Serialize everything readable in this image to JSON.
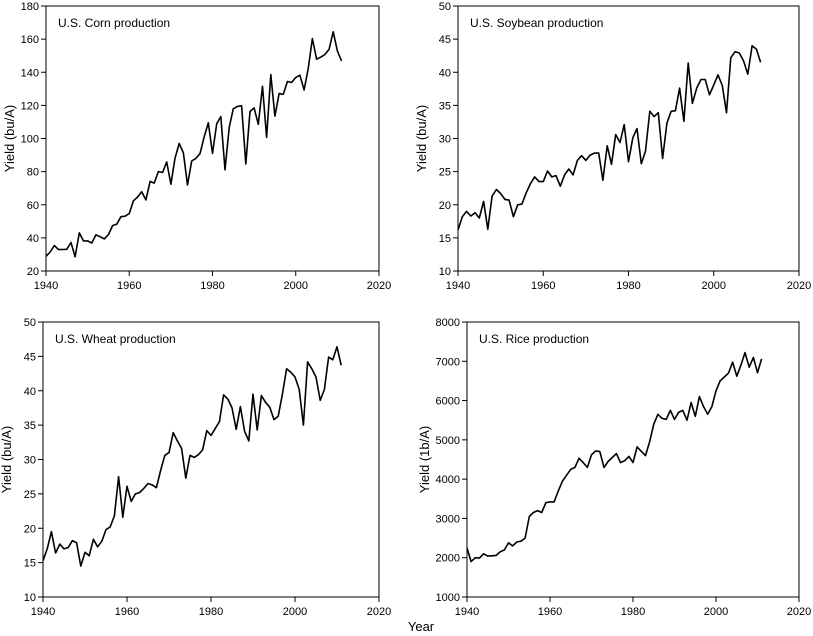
{
  "chart_data": [
    {
      "type": "line",
      "title": "U.S. Corn production",
      "xlabel": "",
      "ylabel": "Yield (bu/A)",
      "xlim": [
        1940,
        2020
      ],
      "ylim": [
        20,
        180
      ],
      "xticks": [
        1940,
        1960,
        1980,
        2000,
        2020
      ],
      "yticks": [
        20,
        40,
        60,
        80,
        100,
        120,
        140,
        160,
        180
      ],
      "grid": false,
      "color": "#000000",
      "x": [
        1940,
        1941,
        1942,
        1943,
        1944,
        1945,
        1946,
        1947,
        1948,
        1949,
        1950,
        1951,
        1952,
        1953,
        1954,
        1955,
        1956,
        1957,
        1958,
        1959,
        1960,
        1961,
        1962,
        1963,
        1964,
        1965,
        1966,
        1967,
        1968,
        1969,
        1970,
        1971,
        1972,
        1973,
        1974,
        1975,
        1976,
        1977,
        1978,
        1979,
        1980,
        1981,
        1982,
        1983,
        1984,
        1985,
        1986,
        1987,
        1988,
        1989,
        1990,
        1991,
        1992,
        1993,
        1994,
        1995,
        1996,
        1997,
        1998,
        1999,
        2000,
        2001,
        2002,
        2003,
        2004,
        2005,
        2006,
        2007,
        2008,
        2009,
        2010,
        2011
      ],
      "y": [
        28.9,
        31.5,
        35.4,
        32.9,
        33.0,
        33.1,
        37.2,
        28.6,
        43.0,
        38.2,
        38.2,
        36.9,
        41.8,
        40.7,
        39.4,
        42.0,
        47.4,
        48.3,
        52.8,
        53.1,
        54.7,
        62.4,
        64.7,
        67.9,
        62.9,
        74.1,
        73.1,
        80.1,
        79.5,
        85.9,
        72.4,
        88.1,
        97.0,
        91.3,
        71.9,
        86.4,
        88.0,
        90.8,
        101.0,
        109.5,
        91.0,
        108.9,
        113.2,
        81.1,
        106.7,
        118.0,
        119.4,
        119.8,
        84.6,
        116.3,
        118.5,
        108.6,
        131.5,
        100.7,
        138.6,
        113.5,
        127.1,
        126.7,
        134.4,
        133.8,
        136.9,
        138.2,
        129.3,
        142.2,
        160.3,
        147.9,
        149.1,
        150.7,
        153.9,
        164.4,
        152.8,
        146.8
      ]
    },
    {
      "type": "line",
      "title": "U.S. Soybean production",
      "xlabel": "",
      "ylabel": "Yield (bu/A)",
      "xlim": [
        1940,
        2020
      ],
      "ylim": [
        10,
        50
      ],
      "xticks": [
        1940,
        1960,
        1980,
        2000,
        2020
      ],
      "yticks": [
        10,
        15,
        20,
        25,
        30,
        35,
        40,
        45,
        50
      ],
      "grid": false,
      "color": "#000000",
      "x": [
        1940,
        1941,
        1942,
        1943,
        1944,
        1945,
        1946,
        1947,
        1948,
        1949,
        1950,
        1951,
        1952,
        1953,
        1954,
        1955,
        1956,
        1957,
        1958,
        1959,
        1960,
        1961,
        1962,
        1963,
        1964,
        1965,
        1966,
        1967,
        1968,
        1969,
        1970,
        1971,
        1972,
        1973,
        1974,
        1975,
        1976,
        1977,
        1978,
        1979,
        1980,
        1981,
        1982,
        1983,
        1984,
        1985,
        1986,
        1987,
        1988,
        1989,
        1990,
        1991,
        1992,
        1993,
        1994,
        1995,
        1996,
        1997,
        1998,
        1999,
        2000,
        2001,
        2002,
        2003,
        2004,
        2005,
        2006,
        2007,
        2008,
        2009,
        2010,
        2011
      ],
      "y": [
        16.2,
        18.2,
        19.0,
        18.3,
        18.8,
        18.0,
        20.5,
        16.3,
        21.3,
        22.3,
        21.7,
        20.8,
        20.7,
        18.2,
        20.0,
        20.1,
        21.8,
        23.2,
        24.2,
        23.5,
        23.5,
        25.1,
        24.2,
        24.4,
        22.8,
        24.5,
        25.4,
        24.5,
        26.7,
        27.4,
        26.7,
        27.5,
        27.8,
        27.8,
        23.7,
        28.9,
        26.1,
        30.6,
        29.4,
        32.1,
        26.5,
        30.1,
        31.5,
        26.2,
        28.1,
        34.1,
        33.3,
        33.9,
        27.0,
        32.3,
        34.1,
        34.2,
        37.6,
        32.6,
        41.4,
        35.3,
        37.6,
        38.9,
        38.9,
        36.6,
        38.1,
        39.6,
        38.0,
        33.9,
        42.2,
        43.1,
        42.9,
        41.7,
        39.7,
        44.0,
        43.5,
        41.5
      ]
    },
    {
      "type": "line",
      "title": "U.S. Wheat production",
      "xlabel": "",
      "ylabel": "Yield (bu/A)",
      "xlim": [
        1940,
        2020
      ],
      "ylim": [
        10,
        50
      ],
      "xticks": [
        1940,
        1960,
        1980,
        2000,
        2020
      ],
      "yticks": [
        10,
        15,
        20,
        25,
        30,
        35,
        40,
        45,
        50
      ],
      "grid": false,
      "color": "#000000",
      "x": [
        1940,
        1941,
        1942,
        1943,
        1944,
        1945,
        1946,
        1947,
        1948,
        1949,
        1950,
        1951,
        1952,
        1953,
        1954,
        1955,
        1956,
        1957,
        1958,
        1959,
        1960,
        1961,
        1962,
        1963,
        1964,
        1965,
        1966,
        1967,
        1968,
        1969,
        1970,
        1971,
        1972,
        1973,
        1974,
        1975,
        1976,
        1977,
        1978,
        1979,
        1980,
        1981,
        1982,
        1983,
        1984,
        1985,
        1986,
        1987,
        1988,
        1989,
        1990,
        1991,
        1992,
        1993,
        1994,
        1995,
        1996,
        1997,
        1998,
        1999,
        2000,
        2001,
        2002,
        2003,
        2004,
        2005,
        2006,
        2007,
        2008,
        2009,
        2010,
        2011
      ],
      "y": [
        15.3,
        17.0,
        19.5,
        16.4,
        17.7,
        17.0,
        17.2,
        18.2,
        17.9,
        14.5,
        16.5,
        16.0,
        18.4,
        17.3,
        18.1,
        19.8,
        20.2,
        21.8,
        27.5,
        21.6,
        26.1,
        23.9,
        25.0,
        25.2,
        25.8,
        26.5,
        26.3,
        25.9,
        28.4,
        30.6,
        31.0,
        33.9,
        32.7,
        31.6,
        27.3,
        30.6,
        30.3,
        30.7,
        31.4,
        34.2,
        33.5,
        34.5,
        35.5,
        39.4,
        38.8,
        37.5,
        34.4,
        37.7,
        34.1,
        32.7,
        39.5,
        34.3,
        39.3,
        38.3,
        37.6,
        35.8,
        36.3,
        39.5,
        43.2,
        42.7,
        42.0,
        40.2,
        35.0,
        44.2,
        43.2,
        42.0,
        38.6,
        40.2,
        44.9,
        44.5,
        46.4,
        43.7
      ]
    },
    {
      "type": "line",
      "title": "U.S. Rice production",
      "xlabel": "",
      "ylabel": "Yield (1b/A)",
      "xlim": [
        1940,
        2020
      ],
      "ylim": [
        1000,
        8000
      ],
      "xticks": [
        1940,
        1960,
        1980,
        2000,
        2020
      ],
      "yticks": [
        1000,
        2000,
        3000,
        4000,
        5000,
        6000,
        7000,
        8000
      ],
      "grid": false,
      "color": "#000000",
      "x": [
        1940,
        1941,
        1942,
        1943,
        1944,
        1945,
        1946,
        1947,
        1948,
        1949,
        1950,
        1951,
        1952,
        1953,
        1954,
        1955,
        1956,
        1957,
        1958,
        1959,
        1960,
        1961,
        1962,
        1963,
        1964,
        1965,
        1966,
        1967,
        1968,
        1969,
        1970,
        1971,
        1972,
        1973,
        1974,
        1975,
        1976,
        1977,
        1978,
        1979,
        1980,
        1981,
        1982,
        1983,
        1984,
        1985,
        1986,
        1987,
        1988,
        1989,
        1990,
        1991,
        1992,
        1993,
        1994,
        1995,
        1996,
        1997,
        1998,
        1999,
        2000,
        2001,
        2002,
        2003,
        2004,
        2005,
        2006,
        2007,
        2008,
        2009,
        2010,
        2011
      ],
      "y": [
        2250,
        1900,
        2000,
        1990,
        2100,
        2040,
        2050,
        2060,
        2150,
        2200,
        2380,
        2300,
        2400,
        2420,
        2500,
        3050,
        3150,
        3200,
        3150,
        3400,
        3420,
        3420,
        3700,
        3950,
        4100,
        4250,
        4300,
        4530,
        4420,
        4300,
        4620,
        4720,
        4700,
        4300,
        4450,
        4550,
        4650,
        4420,
        4470,
        4580,
        4420,
        4820,
        4710,
        4600,
        4950,
        5400,
        5650,
        5550,
        5520,
        5750,
        5520,
        5700,
        5750,
        5500,
        5950,
        5600,
        6100,
        5850,
        5650,
        5850,
        6250,
        6500,
        6600,
        6700,
        6980,
        6620,
        6900,
        7220,
        6850,
        7100,
        6710,
        7060
      ]
    }
  ],
  "figure": {
    "shared_xlabel": "Year"
  }
}
